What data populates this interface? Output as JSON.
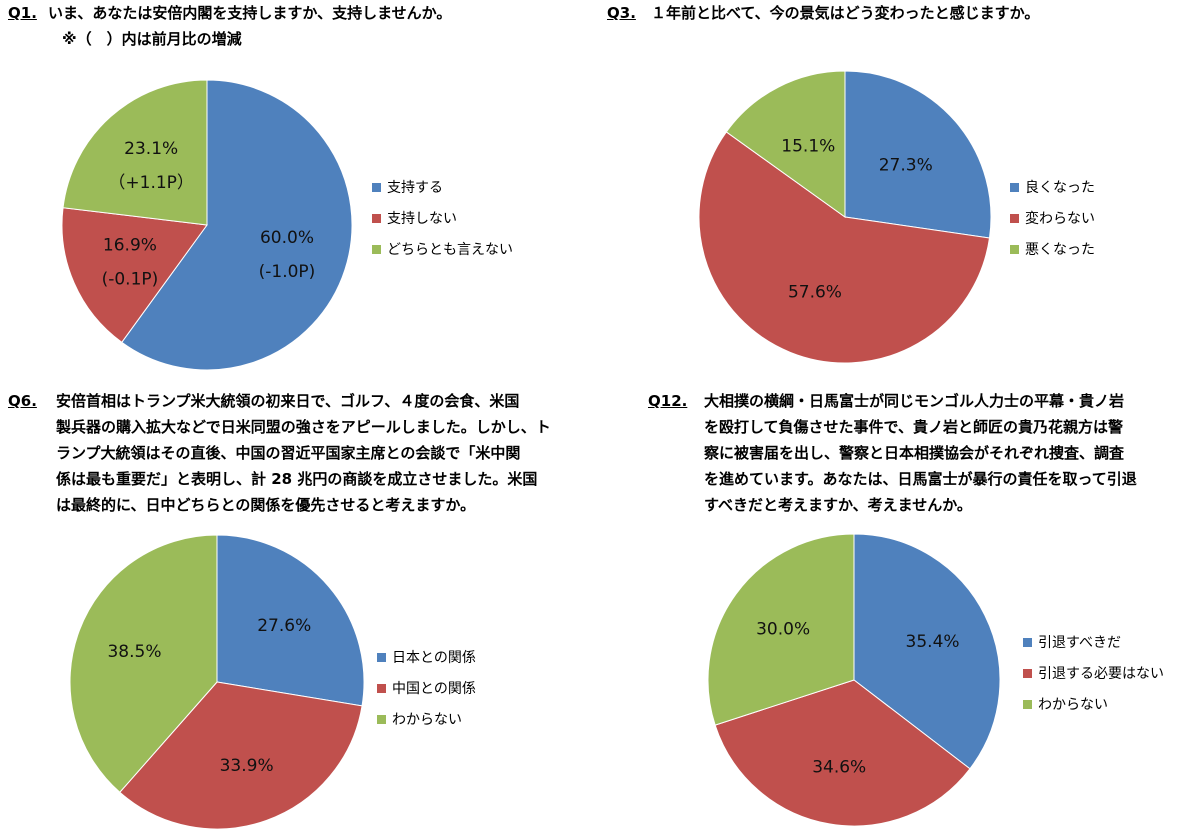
{
  "colors": {
    "blue": "#4F81BD",
    "red": "#C0504D",
    "green": "#9BBB59"
  },
  "q1": {
    "num": "Q1.",
    "question": "いま、あなたは安倍内閣を支持しますか、支持しませんか。",
    "note": "※（　）内は前月比の増減"
  },
  "q3": {
    "num": "Q3.",
    "question": "１年前と比べて、今の景気はどう変わったと感じますか。"
  },
  "q6": {
    "num": "Q6.",
    "question": "安倍首相はトランプ米大統領の初来日で、ゴルフ、４度の会食、米国\n製兵器の購入拡大などで日米同盟の強さをアピールしました。しかし、ト\nランプ大統領はその直後、中国の習近平国家主席との会談で「米中関\n係は最も重要だ」と表明し、計 28 兆円の商談を成立させました。米国\nは最終的に、日中どちらとの関係を優先させると考えますか。"
  },
  "q12": {
    "num": "Q12.",
    "question": "大相撲の横綱・日馬富士が同じモンゴル人力士の平幕・貴ノ岩\nを殴打して負傷させた事件で、貴ノ岩と師匠の貴乃花親方は警\n察に被害届を出し、警察と日本相撲協会がそれぞれ捜査、調査\nを進めています。あなたは、日馬富士が暴行の責任を取って引退\nすべきだと考えますか、考えませんか。"
  },
  "chart_data": [
    {
      "type": "pie",
      "id": "q1",
      "categories": [
        "支持する",
        "支持しない",
        "どちらとも言えない"
      ],
      "values": [
        60.0,
        16.9,
        23.1
      ],
      "labels": [
        "60.0%",
        "16.9%",
        "23.1%"
      ],
      "changes": [
        "(-1.0P)",
        "(-0.1P)",
        "（+1.1P）"
      ],
      "legend": "right"
    },
    {
      "type": "pie",
      "id": "q3",
      "categories": [
        "良くなった",
        "変わらない",
        "悪くなった"
      ],
      "values": [
        27.3,
        57.6,
        15.1
      ],
      "labels": [
        "27.3%",
        "57.6%",
        "15.1%"
      ],
      "legend": "right"
    },
    {
      "type": "pie",
      "id": "q6",
      "categories": [
        "日本との関係",
        "中国との関係",
        "わからない"
      ],
      "values": [
        27.6,
        33.9,
        38.5
      ],
      "labels": [
        "27.6%",
        "33.9%",
        "38.5%"
      ],
      "legend": "right"
    },
    {
      "type": "pie",
      "id": "q12",
      "categories": [
        "引退すべきだ",
        "引退する必要はない",
        "わからない"
      ],
      "values": [
        35.4,
        34.6,
        30.0
      ],
      "labels": [
        "35.4%",
        "34.6%",
        "30.0%"
      ],
      "legend": "right"
    }
  ]
}
